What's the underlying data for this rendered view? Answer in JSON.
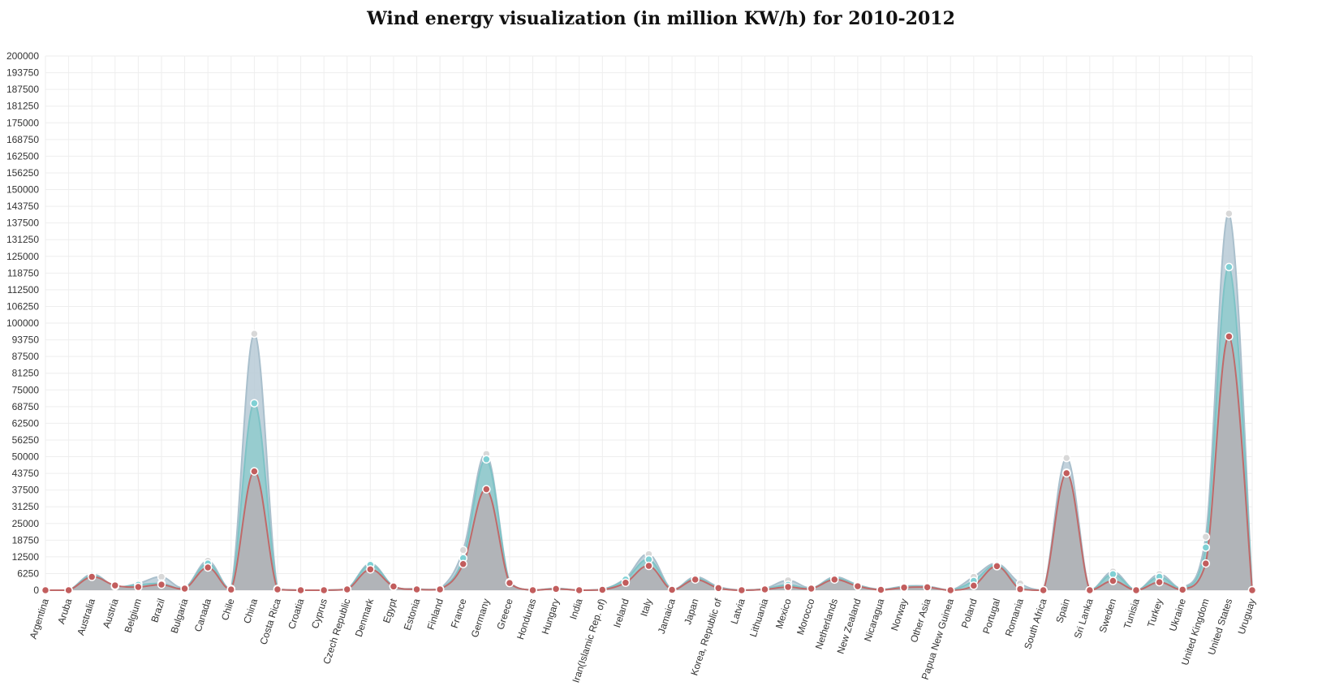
{
  "chart_data": {
    "type": "area",
    "title": "Wind energy visualization (in million KW/h) for 2010-2012",
    "xlabel": "",
    "ylabel": "",
    "ylim": [
      0,
      200000
    ],
    "yticks": [
      0,
      6250,
      12500,
      18750,
      25000,
      31250,
      37500,
      43750,
      50000,
      56250,
      62500,
      68750,
      75000,
      81250,
      87500,
      93750,
      100000,
      106250,
      112500,
      118750,
      125000,
      131250,
      137500,
      143750,
      150000,
      156250,
      162500,
      168750,
      175000,
      181250,
      187500,
      193750,
      200000
    ],
    "grid": true,
    "legend": "none",
    "categories": [
      "Argentina",
      "Aruba",
      "Australia",
      "Austria",
      "Belgium",
      "Brazil",
      "Bulgaria",
      "Canada",
      "Chile",
      "China",
      "Costa Rica",
      "Croatia",
      "Cyprus",
      "Czech Republic",
      "Denmark",
      "Egypt",
      "Estonia",
      "Finland",
      "France",
      "Germany",
      "Greece",
      "Honduras",
      "Hungary",
      "India",
      "Iran(Islamic Rep. of)",
      "Ireland",
      "Italy",
      "Jamaica",
      "Japan",
      "Korea, Republic of",
      "Latvia",
      "Lithuania",
      "Mexico",
      "Morocco",
      "Netherlands",
      "New Zealand",
      "Nicaragua",
      "Norway",
      "Other Asia",
      "Papua New Guinea",
      "Poland",
      "Portugal",
      "Romania",
      "South Africa",
      "Spain",
      "Sri Lanka",
      "Sweden",
      "Tunisia",
      "Turkey",
      "Ukraine",
      "United Kingdom",
      "United States",
      "Uruguay"
    ],
    "series": [
      {
        "color": "#a9bfcc",
        "fill": "#b7cad6",
        "point": "#d8d8d8",
        "values": [
          0,
          0,
          6000,
          1500,
          2500,
          5000,
          1000,
          11000,
          500,
          96000,
          500,
          0,
          0,
          500,
          10000,
          1500,
          500,
          500,
          15000,
          51000,
          3000,
          0,
          700,
          0,
          300,
          4500,
          13500,
          300,
          5000,
          1300,
          0,
          600,
          3700,
          800,
          5000,
          2000,
          300,
          1500,
          1500,
          0,
          5000,
          10000,
          2500,
          0,
          49500,
          0,
          7000,
          0,
          6000,
          800,
          20000,
          141000,
          0
        ]
      },
      {
        "color": "#7ec3c6",
        "fill": "#8fcbcd",
        "point": "#7fd0d4",
        "values": [
          0,
          0,
          5500,
          1500,
          2000,
          2500,
          700,
          10000,
          300,
          70000,
          400,
          0,
          0,
          400,
          9500,
          1400,
          400,
          400,
          12000,
          49000,
          2800,
          0,
          600,
          0,
          200,
          4000,
          11500,
          200,
          4500,
          1000,
          0,
          500,
          2000,
          700,
          4500,
          1800,
          200,
          1300,
          1200,
          0,
          3500,
          9500,
          1000,
          0,
          44000,
          0,
          6000,
          0,
          5000,
          500,
          16000,
          121000,
          0
        ]
      },
      {
        "color": "#c06a6a",
        "fill": "#b2b2b6",
        "point": "#c25d5d",
        "values": [
          0,
          0,
          5000,
          1800,
          1200,
          2100,
          600,
          8500,
          250,
          44500,
          300,
          0,
          0,
          300,
          7800,
          1400,
          300,
          300,
          9800,
          37800,
          2700,
          0,
          500,
          0,
          150,
          2800,
          9100,
          150,
          4000,
          800,
          0,
          300,
          1200,
          600,
          4000,
          1500,
          150,
          1000,
          1100,
          0,
          1700,
          9000,
          400,
          0,
          43800,
          0,
          3500,
          0,
          3000,
          200,
          10000,
          95000,
          0
        ]
      }
    ]
  }
}
